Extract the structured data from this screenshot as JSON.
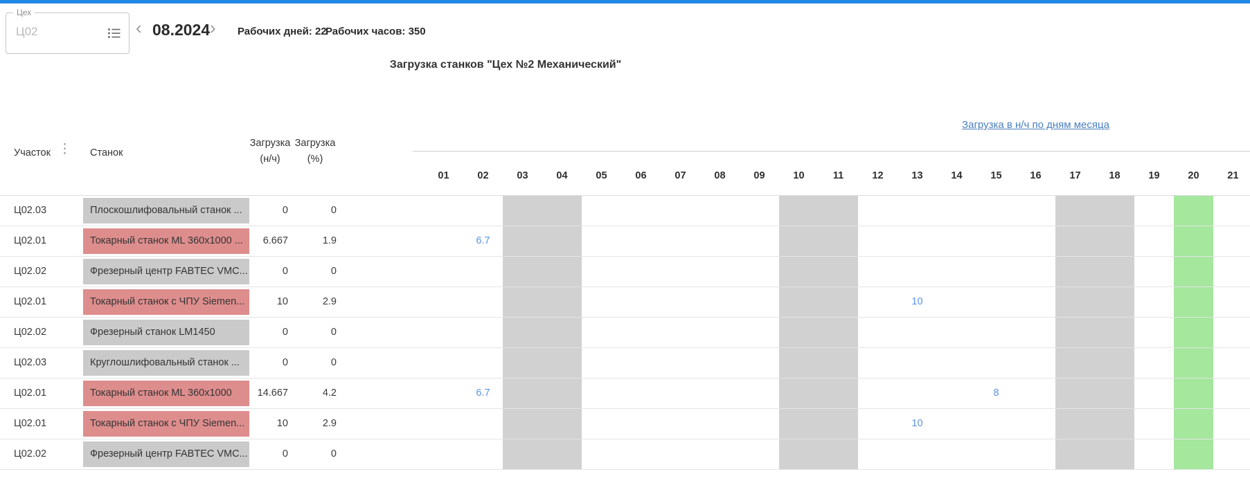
{
  "colors": {
    "accent_strip": "#1e88e5",
    "link_blue": "#4a7ebf",
    "value_blue": "#5b93e5",
    "weekend_gray": "#d1d1d1",
    "highlight_green": "#a4e79d",
    "machine_gray": "#cacaca",
    "machine_red": "#de8d8d"
  },
  "toolbar": {
    "shop_field": {
      "label": "Цех",
      "placeholder": "Ц02"
    },
    "prev_arrow": "‹",
    "next_arrow": "›",
    "month": "08.2024",
    "working_days_label": "Рабочих дней: 22",
    "working_hours_label": "Рабочих часов: 350"
  },
  "title": "Загрузка станков \"Цех №2 Механический\"",
  "table": {
    "headers": {
      "uchastok": "Участок",
      "stanok": "Станок",
      "load_nch_line1": "Загрузка",
      "load_nch_line2": "(н/ч)",
      "load_pct_line1": "Загрузка",
      "load_pct_line2": "(%)",
      "days_link": "Загрузка в н/ч по дням месяца",
      "column_menu_icon": "⋮"
    },
    "days": [
      "01",
      "02",
      "03",
      "04",
      "05",
      "06",
      "07",
      "08",
      "09",
      "10",
      "11",
      "12",
      "13",
      "14",
      "15",
      "16",
      "17",
      "18",
      "19",
      "20",
      "21"
    ],
    "weekend_days": [
      "03",
      "04",
      "10",
      "11",
      "17",
      "18"
    ],
    "highlight_day": "20",
    "rows": [
      {
        "uchastok": "Ц02.03",
        "stanok": "Плоскошлифовальный станок ...",
        "status_color": "gray",
        "load_nch": "0",
        "load_pct": "0",
        "day_values": {}
      },
      {
        "uchastok": "Ц02.01",
        "stanok": "Токарный станок ML 360x1000 ...",
        "status_color": "red",
        "load_nch": "6.667",
        "load_pct": "1.9",
        "day_values": {
          "02": "6.7"
        }
      },
      {
        "uchastok": "Ц02.02",
        "stanok": "Фрезерный центр FABTEC VMC...",
        "status_color": "gray",
        "load_nch": "0",
        "load_pct": "0",
        "day_values": {}
      },
      {
        "uchastok": "Ц02.01",
        "stanok": "Токарный станок с ЧПУ Siemen...",
        "status_color": "red",
        "load_nch": "10",
        "load_pct": "2.9",
        "day_values": {
          "13": "10"
        }
      },
      {
        "uchastok": "Ц02.02",
        "stanok": "Фрезерный станок LM1450",
        "status_color": "gray",
        "load_nch": "0",
        "load_pct": "0",
        "day_values": {}
      },
      {
        "uchastok": "Ц02.03",
        "stanok": "Круглошлифовальный станок ...",
        "status_color": "gray",
        "load_nch": "0",
        "load_pct": "0",
        "day_values": {}
      },
      {
        "uchastok": "Ц02.01",
        "stanok": "Токарный станок ML 360x1000",
        "status_color": "red",
        "load_nch": "14.667",
        "load_pct": "4.2",
        "day_values": {
          "02": "6.7",
          "15": "8"
        }
      },
      {
        "uchastok": "Ц02.01",
        "stanok": "Токарный станок с ЧПУ Siemen...",
        "status_color": "red",
        "load_nch": "10",
        "load_pct": "2.9",
        "day_values": {
          "13": "10"
        }
      },
      {
        "uchastok": "Ц02.02",
        "stanok": "Фрезерный центр FABTEC VMC...",
        "status_color": "gray",
        "load_nch": "0",
        "load_pct": "0",
        "day_values": {}
      }
    ]
  }
}
